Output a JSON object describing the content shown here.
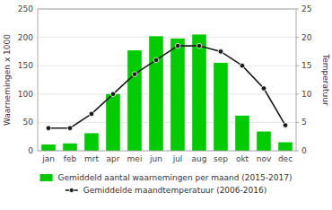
{
  "chart_data": {
    "type": "bar",
    "categories": [
      "jan",
      "feb",
      "mrt",
      "apr",
      "mei",
      "jun",
      "jul",
      "aug",
      "sep",
      "okt",
      "nov",
      "dec"
    ],
    "series": [
      {
        "name": "Gemiddeld aantal waarnemingen per maand (2015-2017)",
        "type": "bar",
        "color": "#00cc00",
        "values": [
          11,
          13,
          31,
          100,
          177,
          202,
          198,
          205,
          155,
          62,
          34,
          15
        ]
      },
      {
        "name": "Gemiddelde maandtemperatuur (2006-2016)",
        "type": "line",
        "color": "#1a1a1a",
        "marker": "circle",
        "axis": "y2",
        "values": [
          4.0,
          4.0,
          6.5,
          10.0,
          13.5,
          16.0,
          18.5,
          18.5,
          17.5,
          15.0,
          11.0,
          4.5
        ]
      }
    ],
    "ylabel": "Waarnemingen x 1000",
    "y2label": "Temperatuur",
    "ylim": [
      0,
      250
    ],
    "yticks": [
      0,
      50,
      100,
      150,
      200,
      250
    ],
    "y2lim": [
      0,
      25
    ],
    "y2ticks": [
      0,
      5,
      10,
      15,
      20,
      25
    ],
    "grid": true,
    "legend": "bottom"
  }
}
